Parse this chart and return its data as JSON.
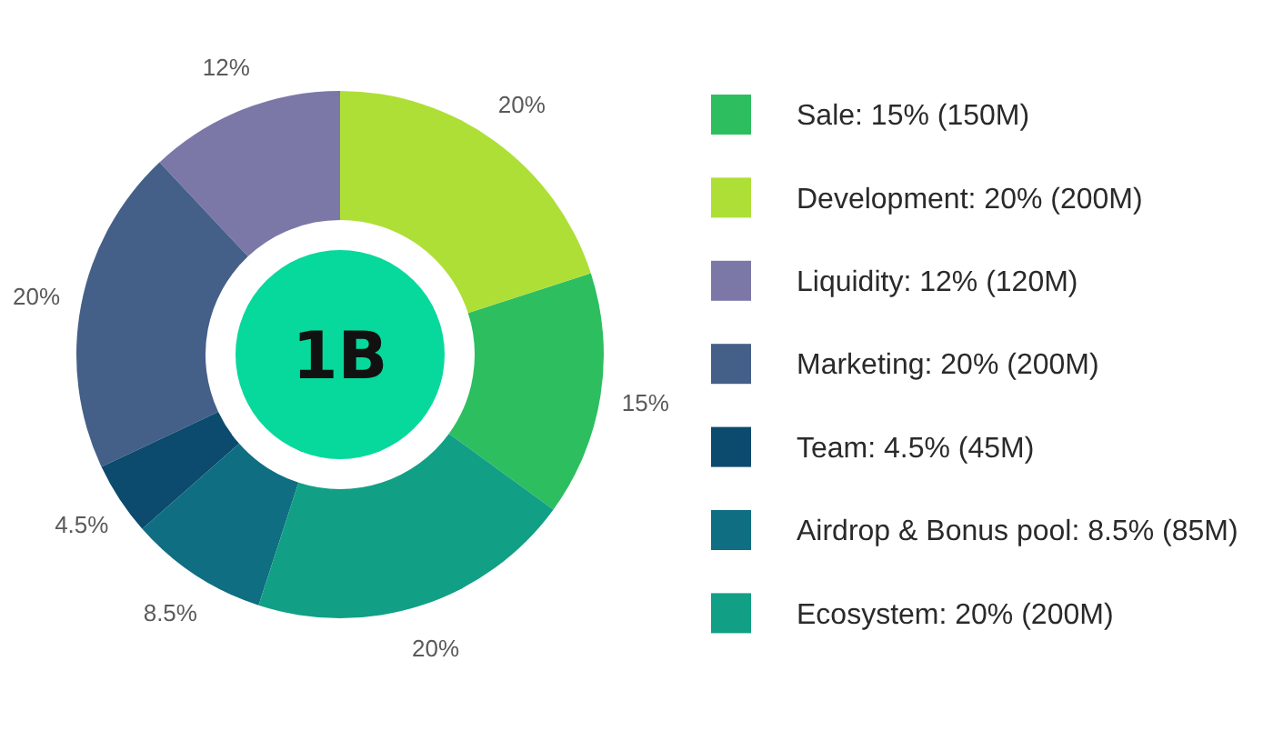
{
  "chart_data": {
    "type": "donut",
    "categories": [
      "Sale: 15% (150M)",
      "Development: 20% (200M)",
      "Liquidity: 12% (120M)",
      "Marketing: 20% (200M)",
      "Team: 4.5% (45M)",
      "Airdrop & Bonus pool: 8.5% (85M)",
      "Ecosystem: 20% (200M)"
    ],
    "values": [
      15,
      20,
      12,
      20,
      4.5,
      8.5,
      20
    ],
    "colors": [
      "#2dbe60",
      "#aedf37",
      "#7b78a8",
      "#446088",
      "#0c4a6e",
      "#0f6e82",
      "#11a085"
    ],
    "value_labels": [
      "15%",
      "20%",
      "12%",
      "20%",
      "4.5%",
      "8.5%",
      "20%"
    ],
    "annotations": [
      "1B"
    ],
    "legend": "right"
  }
}
